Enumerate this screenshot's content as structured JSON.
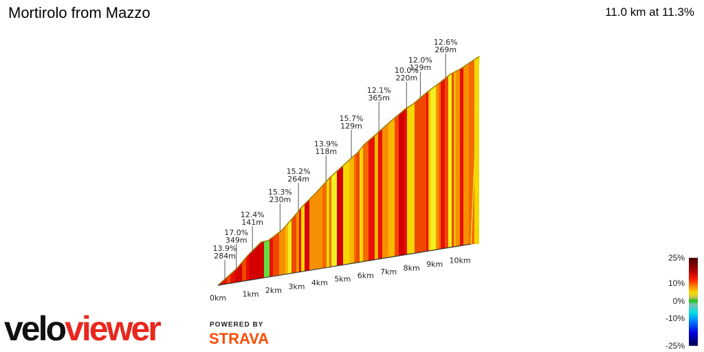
{
  "header": {
    "title": "Mortirolo from Mazzo",
    "summary": "11.0 km at 11.3%"
  },
  "chart_data": {
    "type": "area",
    "title": "Mortirolo from Mazzo",
    "x_ticks": [
      "0km",
      "1km",
      "2km",
      "3km",
      "4km",
      "5km",
      "6km",
      "7km",
      "8km",
      "9km",
      "10km"
    ],
    "annotations": [
      {
        "km": 0.3,
        "grade": "13.9%",
        "length": "284m"
      },
      {
        "km": 0.8,
        "grade": "17.0%",
        "length": "349m"
      },
      {
        "km": 1.5,
        "grade": "12.4%",
        "length": "141m"
      },
      {
        "km": 2.7,
        "grade": "15.3%",
        "length": "230m"
      },
      {
        "km": 3.5,
        "grade": "15.2%",
        "length": "264m"
      },
      {
        "km": 4.7,
        "grade": "13.9%",
        "length": "118m"
      },
      {
        "km": 5.8,
        "grade": "15.7%",
        "length": "129m"
      },
      {
        "km": 7.0,
        "grade": "12.1%",
        "length": "365m"
      },
      {
        "km": 8.2,
        "grade": "10.0%",
        "length": "220m"
      },
      {
        "km": 8.8,
        "grade": "12.0%",
        "length": "129m"
      },
      {
        "km": 9.9,
        "grade": "12.6%",
        "length": "269m"
      }
    ],
    "distance_km": 11.0,
    "average_grade_pct": 11.3
  },
  "legend": {
    "labels": [
      "25%",
      "10%",
      "0%",
      "-10%",
      "-25%"
    ]
  },
  "branding": {
    "logo_a": "velo",
    "logo_b": "viewer",
    "powered_by": "POWERED BY",
    "strava": "STRAVA"
  }
}
